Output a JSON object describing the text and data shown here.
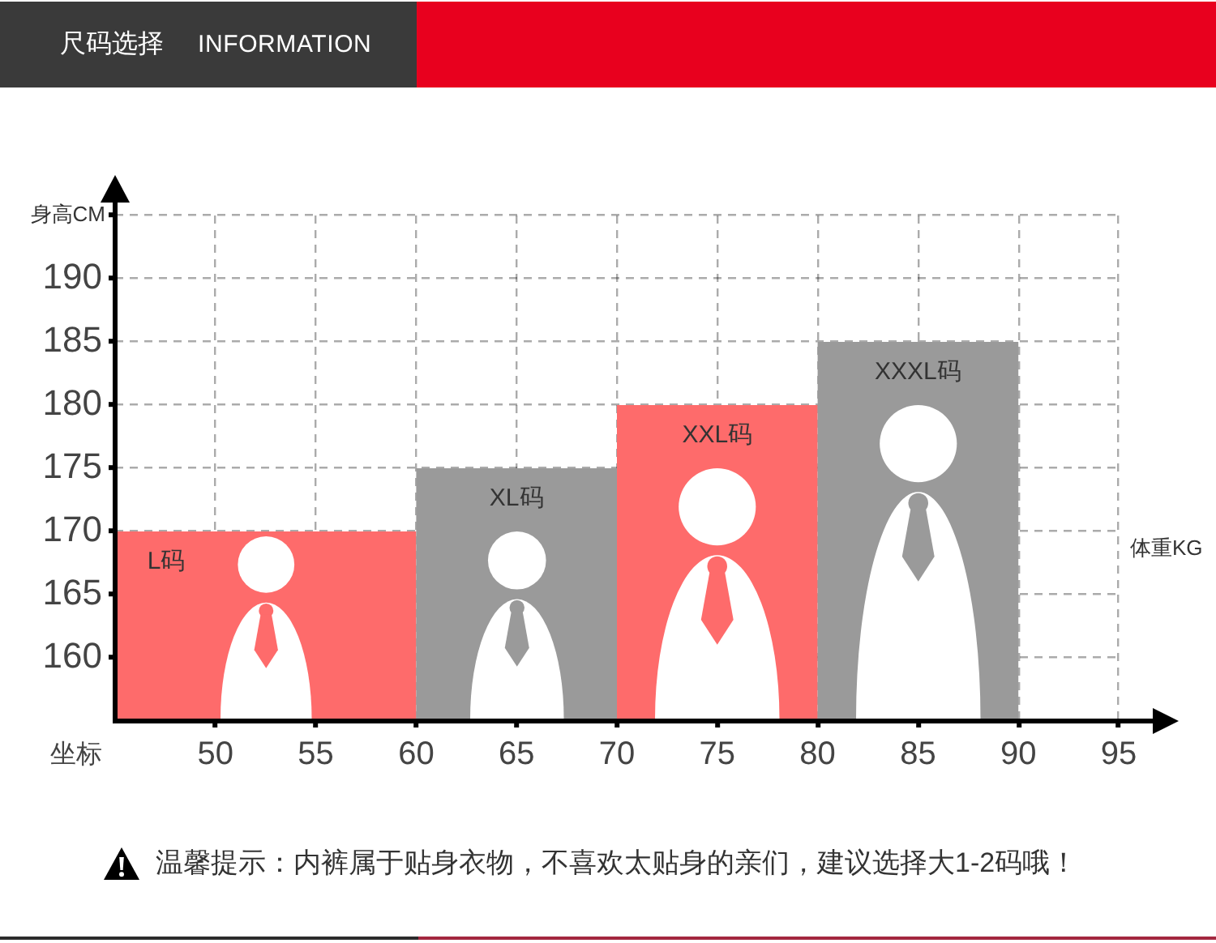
{
  "chart_data": {
    "type": "histogram",
    "title": "尺码选择",
    "subtitle": "INFORMATION",
    "xlabel": "体重KG",
    "ylabel": "身高CM",
    "bins": [
      45,
      60,
      70,
      80,
      90
    ],
    "values": [
      170,
      175,
      180,
      185
    ],
    "colors": [
      "#fe6b6b",
      "#9a9a9a",
      "#fe6b6b",
      "#9a9a9a"
    ],
    "xlim": [
      45,
      95
    ],
    "xticks": [
      50,
      55,
      60,
      65,
      70,
      75,
      80,
      85,
      90,
      95
    ],
    "ylim": [
      155,
      195
    ],
    "yticks": [
      160,
      165,
      170,
      175,
      180,
      185,
      190,
      {
        "value": 195,
        "label": null
      }
    ],
    "grid": true,
    "annotations": [
      "L码",
      "XL码",
      "XXL码",
      "XXXL码",
      "坐标",
      "温馨提示：内裤属于贴身衣物，不喜欢太贴身的亲们，建议选择大1-2码哦！"
    ]
  }
}
